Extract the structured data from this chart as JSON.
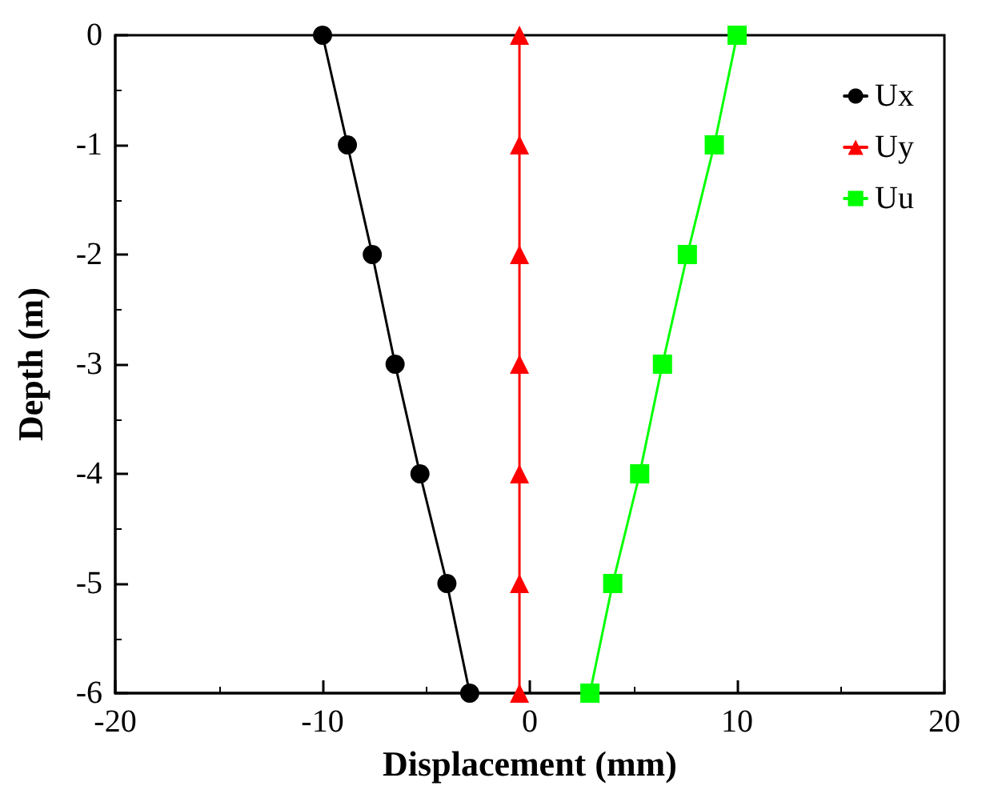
{
  "chart_data": {
    "type": "line",
    "xlabel": "Displacement (mm)",
    "ylabel": "Depth (m)",
    "xlim": [
      -20,
      20
    ],
    "xticks": [
      -20,
      -10,
      0,
      10,
      20
    ],
    "ylim": [
      -6,
      0
    ],
    "yticks": [
      -6,
      -5,
      -4,
      -3,
      -2,
      -1,
      0
    ],
    "grid": false,
    "legend": "top right",
    "line_style": "solid",
    "series": [
      {
        "name": "Ux",
        "color": "#000000",
        "marker": "circle",
        "x": [
          -10,
          -8.8,
          -7.6,
          -6.5,
          -5.3,
          -4.0,
          -2.9
        ],
        "values": [
          0,
          -1,
          -2,
          -3,
          -4,
          -5,
          -6
        ]
      },
      {
        "name": "Uy",
        "color": "#ff0000",
        "marker": "triangle",
        "x": [
          -0.5,
          -0.5,
          -0.5,
          -0.5,
          -0.5,
          -0.5,
          -0.5
        ],
        "values": [
          0,
          -1,
          -2,
          -3,
          -4,
          -5,
          -6
        ]
      },
      {
        "name": "Uu",
        "color": "#00ff00",
        "marker": "square",
        "x": [
          10,
          8.9,
          7.6,
          6.4,
          5.3,
          4.0,
          2.9
        ],
        "values": [
          0,
          -1,
          -2,
          -3,
          -4,
          -5,
          -6
        ]
      }
    ]
  }
}
